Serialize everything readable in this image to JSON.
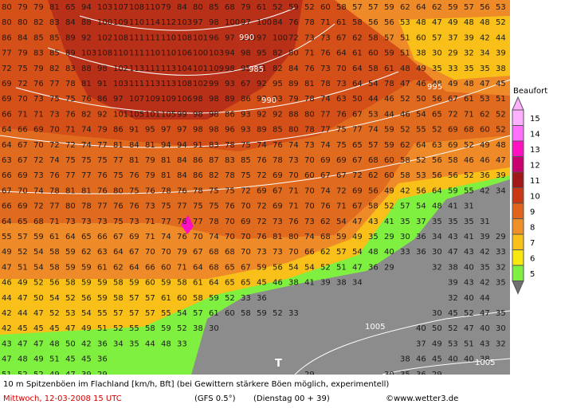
{
  "map": {
    "wind_grid": [
      [
        80,
        79,
        79,
        81,
        65,
        94,
        103,
        107,
        108,
        110,
        79,
        84,
        80,
        85,
        68,
        79,
        61,
        52,
        59,
        52,
        60,
        58,
        57,
        57,
        59,
        62,
        64,
        62,
        59,
        57,
        56,
        53
      ],
      [
        80,
        80,
        82,
        83,
        84,
        88,
        100,
        109,
        110,
        114,
        112,
        103,
        97,
        98,
        100,
        97,
        100,
        84,
        76,
        78,
        71,
        61,
        58,
        56,
        56,
        53,
        48,
        47,
        49,
        48,
        48,
        52
      ],
      [
        86,
        84,
        85,
        85,
        89,
        92,
        102,
        108,
        111,
        111,
        110,
        108,
        101,
        96,
        97,
        100,
        97,
        100,
        72,
        73,
        73,
        67,
        62,
        58,
        57,
        51,
        60,
        57,
        37,
        39,
        42,
        44
      ],
      [
        77,
        79,
        83,
        85,
        89,
        103,
        108,
        110,
        111,
        110,
        110,
        106,
        100,
        103,
        94,
        98,
        95,
        82,
        80,
        71,
        76,
        64,
        61,
        60,
        59,
        51,
        38,
        30,
        29,
        32,
        34,
        39
      ],
      [
        72,
        75,
        79,
        82,
        83,
        88,
        98,
        102,
        113,
        111,
        113,
        104,
        101,
        109,
        98,
        95,
        81,
        82,
        84,
        76,
        73,
        70,
        64,
        58,
        61,
        48,
        49,
        35,
        33,
        35,
        35,
        38
      ],
      [
        69,
        72,
        76,
        77,
        78,
        81,
        91,
        103,
        111,
        113,
        113,
        108,
        102,
        99,
        93,
        67,
        92,
        95,
        89,
        81,
        78,
        73,
        64,
        54,
        78,
        47,
        46,
        48,
        49,
        48,
        47,
        45
      ],
      [
        69,
        70,
        73,
        75,
        75,
        76,
        86,
        97,
        107,
        109,
        109,
        106,
        98,
        98,
        89,
        86,
        93,
        93,
        79,
        78,
        74,
        63,
        50,
        44,
        46,
        52,
        50,
        56,
        67,
        61,
        53,
        51
      ],
      [
        66,
        71,
        71,
        73,
        76,
        82,
        92,
        101,
        105,
        101,
        105,
        99,
        98,
        98,
        86,
        93,
        92,
        92,
        88,
        80,
        77,
        76,
        67,
        53,
        44,
        46,
        54,
        65,
        72,
        71,
        62,
        52
      ],
      [
        64,
        66,
        69,
        70,
        71,
        74,
        79,
        86,
        91,
        95,
        97,
        97,
        98,
        98,
        96,
        93,
        89,
        85,
        80,
        78,
        77,
        75,
        77,
        74,
        59,
        52,
        55,
        52,
        69,
        68,
        60,
        52
      ],
      [
        64,
        67,
        70,
        72,
        72,
        74,
        77,
        81,
        84,
        81,
        94,
        94,
        91,
        83,
        78,
        75,
        74,
        76,
        74,
        73,
        74,
        75,
        65,
        57,
        59,
        62,
        64,
        63,
        69,
        52,
        49,
        48
      ],
      [
        63,
        67,
        72,
        74,
        75,
        75,
        75,
        77,
        81,
        79,
        81,
        84,
        86,
        87,
        83,
        85,
        76,
        78,
        73,
        70,
        69,
        69,
        67,
        68,
        60,
        58,
        52,
        56,
        58,
        46,
        46,
        47
      ],
      [
        66,
        69,
        73,
        76,
        77,
        77,
        76,
        75,
        76,
        79,
        81,
        84,
        86,
        82,
        78,
        75,
        72,
        69,
        70,
        60,
        67,
        67,
        72,
        62,
        60,
        58,
        53,
        56,
        56,
        52,
        36,
        39
      ],
      [
        67,
        70,
        74,
        78,
        81,
        81,
        76,
        80,
        75,
        76,
        78,
        76,
        78,
        75,
        75,
        72,
        69,
        67,
        71,
        70,
        74,
        72,
        69,
        56,
        49,
        42,
        56,
        64,
        59,
        55,
        42,
        34
      ],
      [
        66,
        69,
        72,
        77,
        80,
        78,
        77,
        76,
        76,
        73,
        75,
        77,
        75,
        75,
        76,
        70,
        72,
        69,
        71,
        70,
        76,
        71,
        67,
        58,
        52,
        57,
        54,
        48,
        41,
        31
      ],
      [
        64,
        65,
        68,
        71,
        73,
        73,
        73,
        75,
        73,
        71,
        77,
        76,
        77,
        78,
        70,
        69,
        72,
        73,
        76,
        73,
        62,
        54,
        47,
        43,
        41,
        35,
        37,
        35,
        35,
        35,
        31
      ],
      [
        55,
        57,
        59,
        61,
        64,
        65,
        66,
        67,
        69,
        71,
        74,
        76,
        70,
        74,
        70,
        70,
        76,
        81,
        80,
        74,
        68,
        59,
        49,
        35,
        29,
        30,
        36,
        34,
        43,
        41,
        39,
        29
      ],
      [
        49,
        52,
        54,
        58,
        59,
        62,
        63,
        64,
        67,
        70,
        70,
        79,
        67,
        68,
        68,
        70,
        73,
        73,
        70,
        66,
        62,
        57,
        54,
        48,
        40,
        33,
        36,
        30,
        47,
        43,
        42,
        33
      ],
      [
        47,
        51,
        54,
        58,
        59,
        59,
        61,
        62,
        64,
        66,
        60,
        71,
        64,
        68,
        65,
        67,
        59,
        56,
        54,
        54,
        52,
        51,
        47,
        36,
        29,
        null,
        null,
        32,
        38,
        40,
        35,
        32
      ],
      [
        46,
        49,
        52,
        56,
        58,
        59,
        59,
        58,
        59,
        60,
        59,
        58,
        61,
        64,
        65,
        65,
        45,
        46,
        38,
        41,
        39,
        38,
        34,
        null,
        null,
        null,
        null,
        null,
        39,
        43,
        42,
        35
      ],
      [
        44,
        47,
        50,
        54,
        52,
        56,
        59,
        58,
        57,
        57,
        61,
        60,
        58,
        59,
        52,
        33,
        36,
        null,
        null,
        null,
        null,
        null,
        null,
        null,
        null,
        null,
        null,
        null,
        32,
        40,
        44
      ],
      [
        42,
        44,
        47,
        52,
        53,
        54,
        55,
        57,
        57,
        57,
        55,
        54,
        57,
        61,
        60,
        58,
        59,
        52,
        33,
        null,
        null,
        null,
        null,
        null,
        null,
        null,
        null,
        30,
        45,
        52,
        47,
        35
      ],
      [
        42,
        45,
        45,
        45,
        47,
        49,
        51,
        52,
        55,
        58,
        59,
        52,
        38,
        30,
        null,
        null,
        null,
        null,
        null,
        null,
        null,
        null,
        null,
        null,
        null,
        null,
        40,
        50,
        52,
        47,
        40,
        30
      ],
      [
        43,
        47,
        47,
        48,
        50,
        42,
        36,
        34,
        35,
        44,
        48,
        33,
        null,
        null,
        null,
        null,
        null,
        null,
        null,
        null,
        null,
        null,
        null,
        null,
        null,
        null,
        37,
        49,
        53,
        51,
        43,
        32
      ],
      [
        47,
        48,
        49,
        51,
        45,
        45,
        36,
        null,
        null,
        null,
        null,
        null,
        null,
        null,
        null,
        null,
        null,
        null,
        null,
        null,
        null,
        null,
        null,
        null,
        null,
        38,
        46,
        45,
        40,
        40,
        38
      ],
      [
        51,
        52,
        52,
        49,
        47,
        39,
        29,
        null,
        null,
        null,
        null,
        null,
        null,
        null,
        null,
        null,
        null,
        null,
        null,
        29,
        null,
        null,
        null,
        null,
        30,
        35,
        36,
        29
      ]
    ],
    "isobar_labels": [
      "990",
      "985",
      "990",
      "995",
      "1005",
      "1005"
    ],
    "pressure_symbol": "T"
  },
  "legend": {
    "title": "Beaufort",
    "items": [
      {
        "label": 15,
        "color": "#ffb0ff"
      },
      {
        "label": 14,
        "color": "#ff70ff"
      },
      {
        "label": 13,
        "color": "#ff10c0"
      },
      {
        "label": 12,
        "color": "#c80070"
      },
      {
        "label": 11,
        "color": "#a01818"
      },
      {
        "label": 10,
        "color": "#c83814"
      },
      {
        "label": 9,
        "color": "#e0641c"
      },
      {
        "label": 8,
        "color": "#f09028"
      },
      {
        "label": 7,
        "color": "#f8c018"
      },
      {
        "label": 6,
        "color": "#f8e810"
      },
      {
        "label": 5,
        "color": "#80f040"
      }
    ]
  },
  "footer": {
    "caption": "10 m Spitzenböen im Flachland [km/h, Bft] (bei Gewittern stärkere Böen möglich, experimentell)",
    "valid_time": "Mittwoch, 12-03-2008  15 UTC",
    "model": "(GFS 0.5°)",
    "run": "(Dienstag 00 + 39)",
    "source": "©www.wetter3.de"
  }
}
